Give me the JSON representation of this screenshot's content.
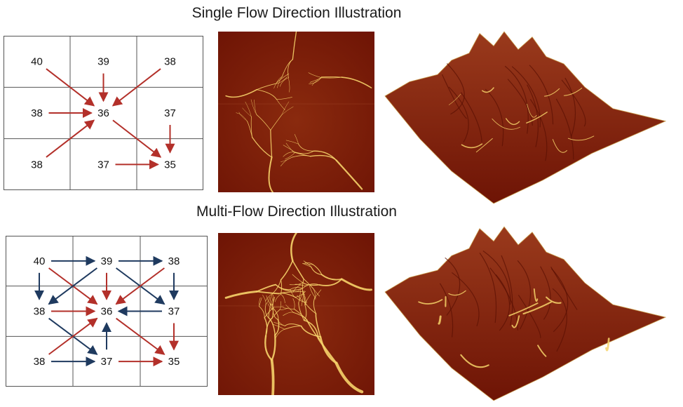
{
  "titles": {
    "single": "Single Flow Direction Illustration",
    "multi": "Multi-Flow Direction Illustration"
  },
  "colors": {
    "red_arrow": "#b3302a",
    "blue_arrow": "#1f3a5f",
    "grid": "#555555",
    "terrain_dark": "#6e1405",
    "terrain_mid": "#8a2a0e",
    "channel": "#f6d36a"
  },
  "single_grid": {
    "values": [
      [
        "40",
        "39",
        "38"
      ],
      [
        "38",
        "36",
        "37"
      ],
      [
        "38",
        "37",
        "35"
      ]
    ],
    "arrows": [
      {
        "from": [
          0,
          0
        ],
        "to": [
          1,
          1
        ],
        "color": "red"
      },
      {
        "from": [
          0,
          1
        ],
        "to": [
          1,
          1
        ],
        "color": "red"
      },
      {
        "from": [
          0,
          2
        ],
        "to": [
          1,
          1
        ],
        "color": "red"
      },
      {
        "from": [
          1,
          0
        ],
        "to": [
          1,
          1
        ],
        "color": "red"
      },
      {
        "from": [
          2,
          0
        ],
        "to": [
          1,
          1
        ],
        "color": "red"
      },
      {
        "from": [
          1,
          1
        ],
        "to": [
          2,
          2
        ],
        "color": "red"
      },
      {
        "from": [
          1,
          2
        ],
        "to": [
          2,
          2
        ],
        "color": "red"
      },
      {
        "from": [
          2,
          1
        ],
        "to": [
          2,
          2
        ],
        "color": "red"
      }
    ]
  },
  "multi_grid": {
    "values": [
      [
        "40",
        "39",
        "38"
      ],
      [
        "38",
        "36",
        "37"
      ],
      [
        "38",
        "37",
        "35"
      ]
    ],
    "arrows": [
      {
        "from": [
          0,
          0
        ],
        "to": [
          0,
          1
        ],
        "color": "blue"
      },
      {
        "from": [
          0,
          0
        ],
        "to": [
          1,
          0
        ],
        "color": "blue"
      },
      {
        "from": [
          0,
          0
        ],
        "to": [
          1,
          1
        ],
        "color": "red"
      },
      {
        "from": [
          0,
          1
        ],
        "to": [
          0,
          2
        ],
        "color": "blue"
      },
      {
        "from": [
          0,
          1
        ],
        "to": [
          1,
          0
        ],
        "color": "blue"
      },
      {
        "from": [
          0,
          1
        ],
        "to": [
          1,
          1
        ],
        "color": "red"
      },
      {
        "from": [
          0,
          1
        ],
        "to": [
          1,
          2
        ],
        "color": "blue"
      },
      {
        "from": [
          0,
          2
        ],
        "to": [
          1,
          1
        ],
        "color": "red"
      },
      {
        "from": [
          0,
          2
        ],
        "to": [
          1,
          2
        ],
        "color": "blue"
      },
      {
        "from": [
          1,
          0
        ],
        "to": [
          1,
          1
        ],
        "color": "red"
      },
      {
        "from": [
          1,
          0
        ],
        "to": [
          2,
          1
        ],
        "color": "blue"
      },
      {
        "from": [
          1,
          2
        ],
        "to": [
          1,
          1
        ],
        "color": "blue"
      },
      {
        "from": [
          1,
          2
        ],
        "to": [
          2,
          2
        ],
        "color": "red"
      },
      {
        "from": [
          2,
          0
        ],
        "to": [
          1,
          1
        ],
        "color": "red"
      },
      {
        "from": [
          2,
          0
        ],
        "to": [
          2,
          1
        ],
        "color": "blue"
      },
      {
        "from": [
          2,
          1
        ],
        "to": [
          1,
          1
        ],
        "color": "blue"
      },
      {
        "from": [
          2,
          1
        ],
        "to": [
          2,
          2
        ],
        "color": "red"
      },
      {
        "from": [
          1,
          1
        ],
        "to": [
          2,
          2
        ],
        "color": "red"
      }
    ]
  },
  "panels": {
    "top_map": "single-flow-accumulation-map",
    "top_terrain": "single-flow-terrain-render",
    "bottom_map": "multi-flow-accumulation-map",
    "bottom_terrain": "multi-flow-terrain-render"
  }
}
